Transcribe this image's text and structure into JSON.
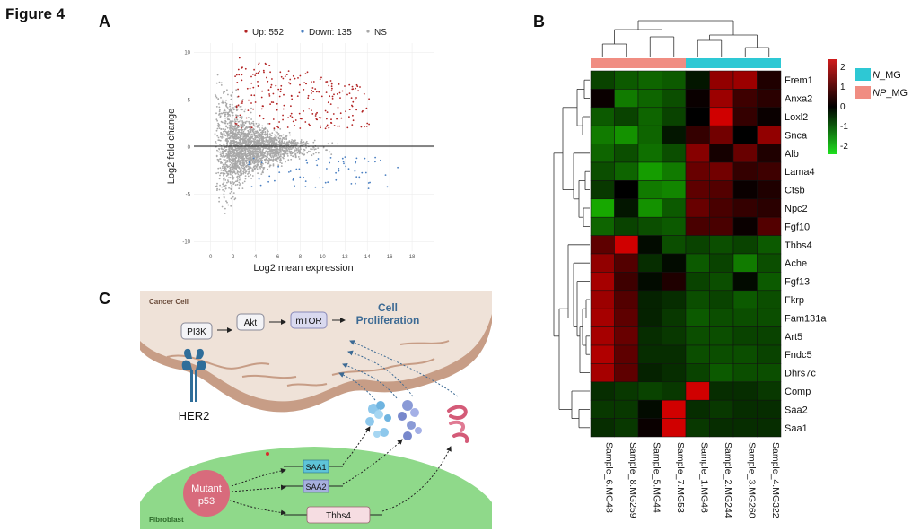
{
  "figure_title": "Figure 4",
  "panel_a": {
    "letter": "A",
    "legend": {
      "up": "Up: 552",
      "down": "Down: 135",
      "ns": "NS"
    },
    "xlabel": "Log2 mean expression",
    "ylabel": "Log2 fold change",
    "xticks": [
      "0",
      "2",
      "4",
      "6",
      "8",
      "10",
      "12",
      "14",
      "16",
      "18"
    ],
    "yticks": [
      "10",
      "5",
      "0",
      "-5",
      "-10"
    ],
    "colors": {
      "up": "#b22222",
      "down": "#4a7fc1",
      "ns": "#a8a8a8"
    }
  },
  "panel_b": {
    "letter": "B",
    "genes": [
      "Frem1",
      "Anxa2",
      "Loxl2",
      "Snca",
      "Alb",
      "Lama4",
      "Ctsb",
      "Npc2",
      "Fgf10",
      "Thbs4",
      "Ache",
      "Fgf13",
      "Fkrp",
      "Fam131a",
      "Art5",
      "Fndc5",
      "Dhrs7c",
      "Comp",
      "Saa2",
      "Saa1"
    ],
    "samples": [
      "Sample_6.MG48",
      "Sample_8.MG259",
      "Sample_5.MG44",
      "Sample_7.MG53",
      "Sample_1.MG46",
      "Sample_2.MG244",
      "Sample_3.MG260",
      "Sample_4.MG322"
    ],
    "sample_groups": [
      "NP",
      "NP",
      "NP",
      "NP",
      "N",
      "N",
      "N",
      "N"
    ],
    "matrix": [
      [
        -0.6,
        -0.8,
        -0.9,
        -0.8,
        -0.2,
        1.4,
        1.5,
        0.3
      ],
      [
        0.1,
        -1.1,
        -0.9,
        -0.7,
        0.1,
        1.5,
        0.6,
        0.4
      ],
      [
        -0.8,
        -0.6,
        -0.9,
        -0.6,
        0.0,
        2.0,
        0.5,
        0.1
      ],
      [
        -1.1,
        -1.3,
        -0.9,
        -0.2,
        0.5,
        1.1,
        0.0,
        1.4
      ],
      [
        -0.9,
        -0.7,
        -1.0,
        -0.7,
        1.3,
        0.2,
        1.0,
        0.3
      ],
      [
        -0.7,
        -0.9,
        -1.4,
        -1.1,
        1.0,
        1.1,
        0.5,
        0.6
      ],
      [
        -0.5,
        0.0,
        -1.1,
        -1.2,
        0.9,
        0.8,
        0.1,
        0.3
      ],
      [
        -1.5,
        -0.2,
        -1.3,
        -0.8,
        1.0,
        0.7,
        0.5,
        0.4
      ],
      [
        -0.9,
        -0.6,
        -0.7,
        -0.8,
        0.7,
        0.7,
        0.1,
        0.8
      ],
      [
        0.9,
        2.0,
        -0.1,
        -0.7,
        -0.6,
        -0.7,
        -0.6,
        -0.8
      ],
      [
        1.4,
        0.8,
        -0.4,
        -0.1,
        -0.8,
        -0.6,
        -1.1,
        -0.7
      ],
      [
        1.6,
        0.6,
        -0.1,
        0.3,
        -0.6,
        -0.7,
        -0.1,
        -0.8
      ],
      [
        1.5,
        0.8,
        -0.3,
        -0.4,
        -0.7,
        -0.6,
        -0.8,
        -0.7
      ],
      [
        1.6,
        0.9,
        -0.3,
        -0.5,
        -0.8,
        -0.7,
        -0.7,
        -0.7
      ],
      [
        1.6,
        1.0,
        -0.4,
        -0.5,
        -0.7,
        -0.7,
        -0.6,
        -0.6
      ],
      [
        1.7,
        0.9,
        -0.4,
        -0.4,
        -0.7,
        -0.7,
        -0.7,
        -0.6
      ],
      [
        1.6,
        0.9,
        -0.3,
        -0.4,
        -0.6,
        -0.8,
        -0.7,
        -0.7
      ],
      [
        -0.4,
        -0.5,
        -0.6,
        -0.5,
        2.0,
        -0.4,
        -0.4,
        -0.5
      ],
      [
        -0.5,
        -0.5,
        -0.1,
        2.0,
        -0.4,
        -0.5,
        -0.4,
        -0.4
      ],
      [
        -0.4,
        -0.5,
        0.1,
        2.0,
        -0.5,
        -0.4,
        -0.4,
        -0.4
      ]
    ],
    "colorbar_ticks": [
      "2",
      "1",
      "0",
      "-1",
      "-2"
    ],
    "legend": [
      {
        "label_prefix": "N",
        "label_suffix": "_MG",
        "color": "#2ec8d4"
      },
      {
        "label_prefix": "NP",
        "label_suffix": "_MG",
        "color": "#f08d82"
      }
    ]
  },
  "panel_c": {
    "letter": "C",
    "cancer_cell_label": "Cancer Cell",
    "fibroblast_label": "Fibroblast",
    "pi3k": "PI3K",
    "akt": "Akt",
    "mtor": "mTOR",
    "proliferation_line1": "Cell",
    "proliferation_line2": "Proliferation",
    "her2": "HER2",
    "mutant_line1": "Mutant",
    "mutant_line2": "p53",
    "saa1": "SAA1",
    "saa2": "SAA2",
    "thbs4": "Thbs4"
  }
}
